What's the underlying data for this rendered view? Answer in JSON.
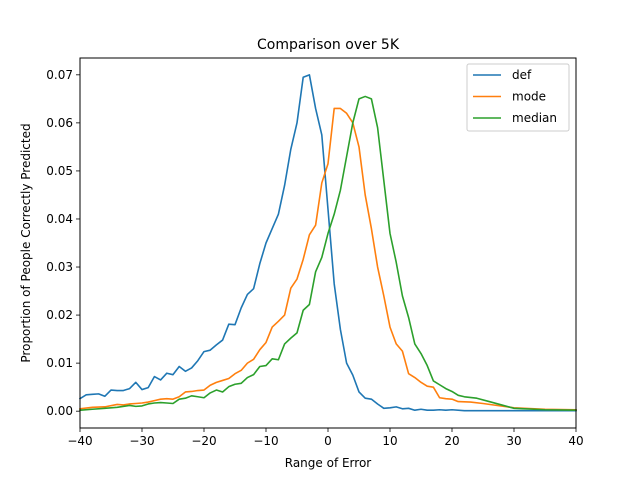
{
  "chart_data": {
    "type": "line",
    "title": "Comparison over 5K",
    "xlabel": "Range of Error",
    "ylabel": "Proportion of People Correctly Predicted",
    "xlim": [
      -40,
      40
    ],
    "ylim": [
      -0.0035,
      0.0735
    ],
    "xticks": [
      -40,
      -30,
      -20,
      -10,
      0,
      10,
      20,
      30,
      40
    ],
    "xtick_labels": [
      "−40",
      "−30",
      "−20",
      "−10",
      "0",
      "10",
      "20",
      "30",
      "40"
    ],
    "yticks": [
      0.0,
      0.01,
      0.02,
      0.03,
      0.04,
      0.05,
      0.06,
      0.07
    ],
    "ytick_labels": [
      "0.00",
      "0.01",
      "0.02",
      "0.03",
      "0.04",
      "0.05",
      "0.06",
      "0.07"
    ],
    "grid": false,
    "legend": "top-right",
    "series": [
      {
        "name": "def",
        "color": "#1f77b4",
        "points": [
          [
            -40,
            0.0026
          ],
          [
            -39,
            0.0034
          ],
          [
            -38,
            0.0035
          ],
          [
            -37,
            0.0036
          ],
          [
            -36,
            0.0031
          ],
          [
            -35,
            0.0044
          ],
          [
            -34,
            0.0043
          ],
          [
            -33,
            0.0043
          ],
          [
            -32,
            0.0047
          ],
          [
            -31,
            0.006
          ],
          [
            -30,
            0.0045
          ],
          [
            -29,
            0.0049
          ],
          [
            -28,
            0.0072
          ],
          [
            -27,
            0.0065
          ],
          [
            -26,
            0.0079
          ],
          [
            -25,
            0.0076
          ],
          [
            -24,
            0.0093
          ],
          [
            -23,
            0.0083
          ],
          [
            -22,
            0.009
          ],
          [
            -21,
            0.0105
          ],
          [
            -20,
            0.0124
          ],
          [
            -19,
            0.0127
          ],
          [
            -18,
            0.0138
          ],
          [
            -17,
            0.0148
          ],
          [
            -16,
            0.0181
          ],
          [
            -15,
            0.018
          ],
          [
            -14,
            0.0215
          ],
          [
            -13,
            0.0243
          ],
          [
            -12,
            0.0255
          ],
          [
            -11,
            0.0307
          ],
          [
            -10,
            0.035
          ],
          [
            -9,
            0.038
          ],
          [
            -8,
            0.041
          ],
          [
            -7,
            0.047
          ],
          [
            -6,
            0.0545
          ],
          [
            -5,
            0.06
          ],
          [
            -4,
            0.0695
          ],
          [
            -3,
            0.07
          ],
          [
            -2,
            0.063
          ],
          [
            -1,
            0.0575
          ],
          [
            0,
            0.042
          ],
          [
            1,
            0.0265
          ],
          [
            2,
            0.017
          ],
          [
            3,
            0.01
          ],
          [
            4,
            0.0075
          ],
          [
            5,
            0.004
          ],
          [
            6,
            0.0027
          ],
          [
            7,
            0.0025
          ],
          [
            8,
            0.0015
          ],
          [
            9,
            0.0006
          ],
          [
            10,
            0.0007
          ],
          [
            11,
            0.0009
          ],
          [
            12,
            0.0005
          ],
          [
            13,
            0.0006
          ],
          [
            14,
            0.0002
          ],
          [
            15,
            0.0004
          ],
          [
            16,
            0.0002
          ],
          [
            17,
            0.0002
          ],
          [
            18,
            0.0003
          ],
          [
            19,
            0.0002
          ],
          [
            20,
            0.0003
          ],
          [
            22,
            0.0001
          ],
          [
            25,
            0.0001
          ],
          [
            30,
            0.0001
          ],
          [
            35,
            0.0001
          ],
          [
            40,
            0.0001
          ]
        ]
      },
      {
        "name": "mode",
        "color": "#ff7f0e",
        "points": [
          [
            -40,
            0.0005
          ],
          [
            -38,
            0.0008
          ],
          [
            -36,
            0.0009
          ],
          [
            -34,
            0.0014
          ],
          [
            -33,
            0.0013
          ],
          [
            -32,
            0.0015
          ],
          [
            -31,
            0.0016
          ],
          [
            -30,
            0.0017
          ],
          [
            -29,
            0.0019
          ],
          [
            -28,
            0.0022
          ],
          [
            -27,
            0.0025
          ],
          [
            -26,
            0.0026
          ],
          [
            -25,
            0.0025
          ],
          [
            -24,
            0.003
          ],
          [
            -23,
            0.004
          ],
          [
            -22,
            0.0041
          ],
          [
            -21,
            0.0043
          ],
          [
            -20,
            0.0044
          ],
          [
            -19,
            0.0054
          ],
          [
            -18,
            0.006
          ],
          [
            -17,
            0.0064
          ],
          [
            -16,
            0.0068
          ],
          [
            -15,
            0.0078
          ],
          [
            -14,
            0.0085
          ],
          [
            -13,
            0.01
          ],
          [
            -12,
            0.0108
          ],
          [
            -11,
            0.0128
          ],
          [
            -10,
            0.0143
          ],
          [
            -9,
            0.0175
          ],
          [
            -8,
            0.0187
          ],
          [
            -7,
            0.02
          ],
          [
            -6,
            0.0256
          ],
          [
            -5,
            0.0275
          ],
          [
            -4,
            0.0316
          ],
          [
            -3,
            0.0367
          ],
          [
            -2,
            0.0387
          ],
          [
            -1,
            0.0475
          ],
          [
            0,
            0.0515
          ],
          [
            1,
            0.063
          ],
          [
            2,
            0.063
          ],
          [
            3,
            0.062
          ],
          [
            4,
            0.06
          ],
          [
            5,
            0.055
          ],
          [
            6,
            0.045
          ],
          [
            7,
            0.038
          ],
          [
            8,
            0.03
          ],
          [
            9,
            0.024
          ],
          [
            10,
            0.0175
          ],
          [
            11,
            0.014
          ],
          [
            12,
            0.0125
          ],
          [
            13,
            0.0078
          ],
          [
            14,
            0.007
          ],
          [
            15,
            0.006
          ],
          [
            16,
            0.0052
          ],
          [
            17,
            0.005
          ],
          [
            18,
            0.0028
          ],
          [
            19,
            0.0026
          ],
          [
            20,
            0.0025
          ],
          [
            21,
            0.002
          ],
          [
            23,
            0.0019
          ],
          [
            25,
            0.0016
          ],
          [
            30,
            0.0007
          ],
          [
            35,
            0.0004
          ],
          [
            40,
            0.0003
          ]
        ]
      },
      {
        "name": "median",
        "color": "#2ca02c",
        "points": [
          [
            -40,
            0.0002
          ],
          [
            -38,
            0.0004
          ],
          [
            -36,
            0.0006
          ],
          [
            -34,
            0.0008
          ],
          [
            -32,
            0.0012
          ],
          [
            -31,
            0.001
          ],
          [
            -30,
            0.0011
          ],
          [
            -29,
            0.0015
          ],
          [
            -28,
            0.0017
          ],
          [
            -27,
            0.0018
          ],
          [
            -26,
            0.0017
          ],
          [
            -25,
            0.0016
          ],
          [
            -24,
            0.0025
          ],
          [
            -23,
            0.0027
          ],
          [
            -22,
            0.0032
          ],
          [
            -21,
            0.003
          ],
          [
            -20,
            0.0028
          ],
          [
            -19,
            0.0038
          ],
          [
            -18,
            0.0044
          ],
          [
            -17,
            0.004
          ],
          [
            -16,
            0.0051
          ],
          [
            -15,
            0.0056
          ],
          [
            -14,
            0.0058
          ],
          [
            -13,
            0.007
          ],
          [
            -12,
            0.0076
          ],
          [
            -11,
            0.0093
          ],
          [
            -10,
            0.0095
          ],
          [
            -9,
            0.0109
          ],
          [
            -8,
            0.0107
          ],
          [
            -7,
            0.014
          ],
          [
            -6,
            0.0152
          ],
          [
            -5,
            0.0163
          ],
          [
            -4,
            0.021
          ],
          [
            -3,
            0.0222
          ],
          [
            -2,
            0.029
          ],
          [
            -1,
            0.032
          ],
          [
            0,
            0.037
          ],
          [
            1,
            0.041
          ],
          [
            2,
            0.046
          ],
          [
            3,
            0.053
          ],
          [
            4,
            0.06
          ],
          [
            5,
            0.065
          ],
          [
            6,
            0.0655
          ],
          [
            7,
            0.065
          ],
          [
            8,
            0.059
          ],
          [
            9,
            0.048
          ],
          [
            10,
            0.037
          ],
          [
            11,
            0.031
          ],
          [
            12,
            0.024
          ],
          [
            13,
            0.0195
          ],
          [
            14,
            0.014
          ],
          [
            15,
            0.012
          ],
          [
            16,
            0.0095
          ],
          [
            17,
            0.0063
          ],
          [
            18,
            0.0055
          ],
          [
            19,
            0.0047
          ],
          [
            20,
            0.0041
          ],
          [
            21,
            0.0033
          ],
          [
            22,
            0.003
          ],
          [
            24,
            0.0027
          ],
          [
            26,
            0.002
          ],
          [
            28,
            0.0013
          ],
          [
            30,
            0.0006
          ],
          [
            35,
            0.0003
          ],
          [
            40,
            0.0002
          ]
        ]
      }
    ]
  }
}
